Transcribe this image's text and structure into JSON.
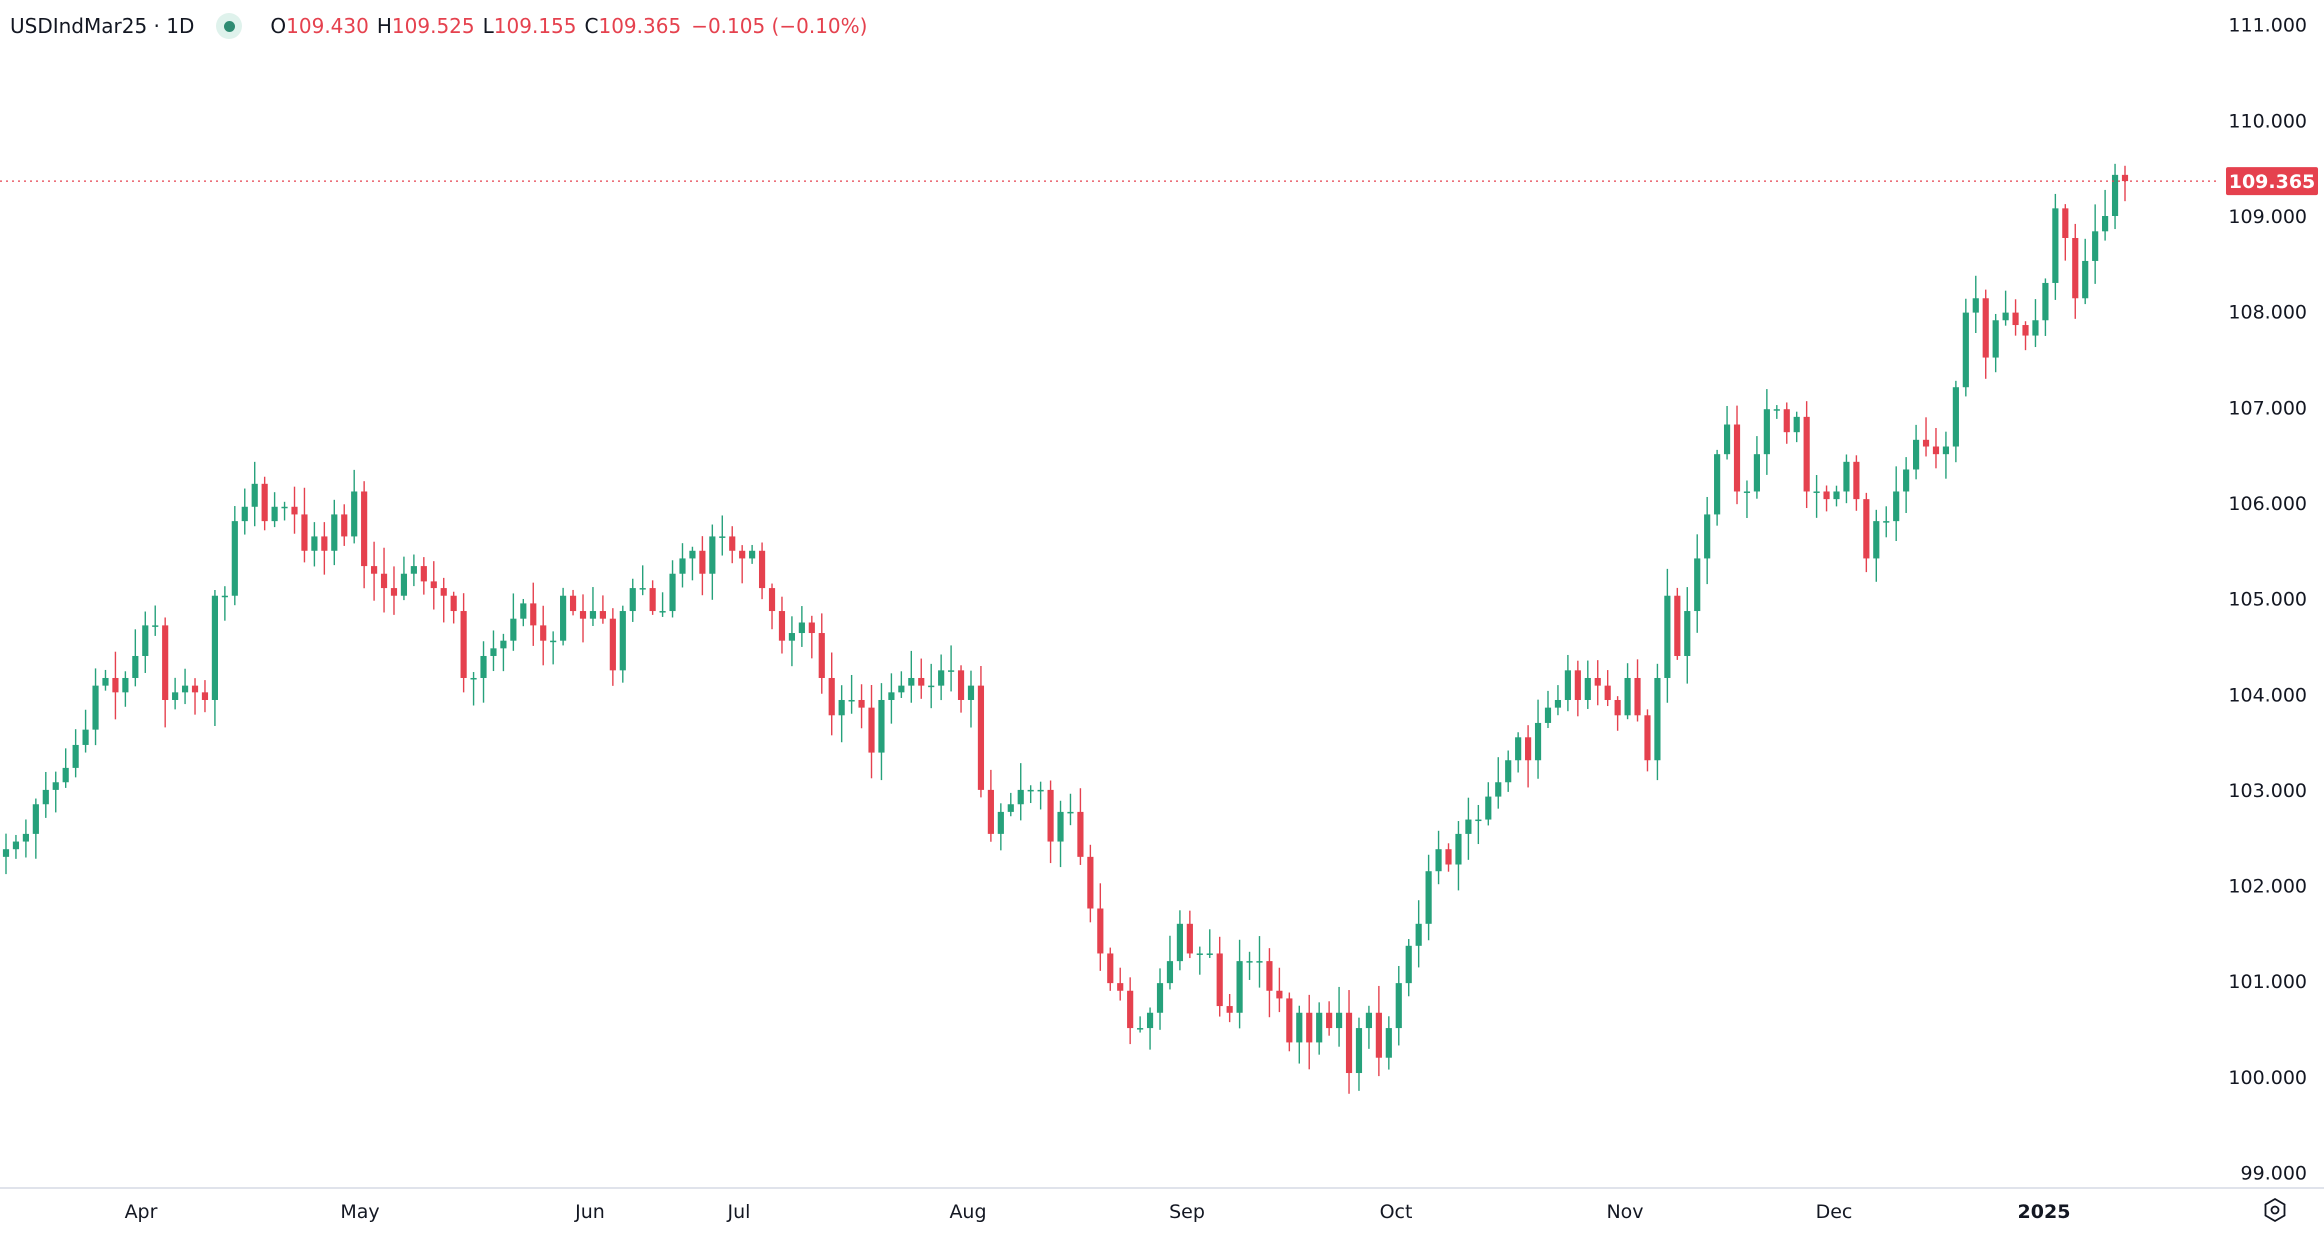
{
  "header": {
    "symbol": "USDIndMar25 · 1D",
    "status_color": "#2e8b72",
    "open_label": "O",
    "open": "109.430",
    "high_label": "H",
    "high": "109.525",
    "low_label": "L",
    "low": "109.155",
    "close_label": "C",
    "close": "109.365",
    "change": "−0.105 (−0.10%)"
  },
  "colors": {
    "up": "#26a17b",
    "down": "#e5414e",
    "last_price_bg": "#e5414e"
  },
  "chart_data": {
    "type": "candlestick",
    "interval": "1D",
    "title": "",
    "ylim": [
      99,
      111
    ],
    "y_ticks": [
      "111.000",
      "110.000",
      "109.000",
      "108.000",
      "107.000",
      "106.000",
      "105.000",
      "104.000",
      "103.000",
      "102.000",
      "101.000",
      "100.000",
      "99.000"
    ],
    "x_ticks": [
      "Apr",
      "May",
      "Jun",
      "Jul",
      "Aug",
      "Sep",
      "Oct",
      "Nov",
      "Dec",
      "2025"
    ],
    "last_price": "109.365",
    "last_bar": {
      "open": 109.43,
      "high": 109.525,
      "low": 109.155,
      "close": 109.365
    },
    "grid": false,
    "closes": [
      102.38,
      102.46,
      102.54,
      102.85,
      103.0,
      103.08,
      103.23,
      103.47,
      103.63,
      104.09,
      104.17,
      104.02,
      104.17,
      104.4,
      104.72,
      104.72,
      103.94,
      104.02,
      104.09,
      104.02,
      103.94,
      105.03,
      105.03,
      105.81,
      105.96,
      106.2,
      105.81,
      105.96,
      105.96,
      105.88,
      105.5,
      105.65,
      105.5,
      105.88,
      105.65,
      106.12,
      105.34,
      105.26,
      105.11,
      105.03,
      105.26,
      105.34,
      105.18,
      105.11,
      105.03,
      104.87,
      104.17,
      104.17,
      104.4,
      104.48,
      104.56,
      104.79,
      104.95,
      104.72,
      104.56,
      104.56,
      105.03,
      104.87,
      104.79,
      104.87,
      104.79,
      104.25,
      104.87,
      105.11,
      105.11,
      104.87,
      104.87,
      105.26,
      105.42,
      105.5,
      105.26,
      105.65,
      105.65,
      105.5,
      105.42,
      105.5,
      105.11,
      104.87,
      104.56,
      104.64,
      104.75,
      104.64,
      104.17,
      103.78,
      103.94,
      103.94,
      103.86,
      103.39,
      103.94,
      104.02,
      104.09,
      104.17,
      104.09,
      104.09,
      104.25,
      104.25,
      103.94,
      104.09,
      103.0,
      102.54,
      102.77,
      102.85,
      103.0,
      103.0,
      103.0,
      102.46,
      102.77,
      102.77,
      102.3,
      101.76,
      101.29,
      100.98,
      100.9,
      100.51,
      100.51,
      100.67,
      100.98,
      101.21,
      101.6,
      101.29,
      101.29,
      101.29,
      100.74,
      100.67,
      101.21,
      101.21,
      101.21,
      100.9,
      100.82,
      100.36,
      100.67,
      100.36,
      100.67,
      100.51,
      100.67,
      100.04,
      100.51,
      100.67,
      100.2,
      100.51,
      100.98,
      101.37,
      101.6,
      102.15,
      102.38,
      102.22,
      102.54,
      102.69,
      102.69,
      102.93,
      103.08,
      103.31,
      103.55,
      103.31,
      103.7,
      103.86,
      103.94,
      104.25,
      103.94,
      104.17,
      104.09,
      103.94,
      103.78,
      104.17,
      103.78,
      103.31,
      104.17,
      105.03,
      104.4,
      104.87,
      105.42,
      105.88,
      106.51,
      106.82,
      106.12,
      106.12,
      106.51,
      106.98,
      106.98,
      106.74,
      106.9,
      106.12,
      106.12,
      106.04,
      106.12,
      106.43,
      106.04,
      105.42,
      105.81,
      105.81,
      106.12,
      106.35,
      106.66,
      106.59,
      106.51,
      106.59,
      107.21,
      107.99,
      108.14,
      107.52,
      107.91,
      107.99,
      107.86,
      107.75,
      107.91,
      108.3,
      109.08,
      108.77,
      108.14,
      108.53,
      108.84,
      109.0,
      109.43,
      109.365
    ]
  }
}
